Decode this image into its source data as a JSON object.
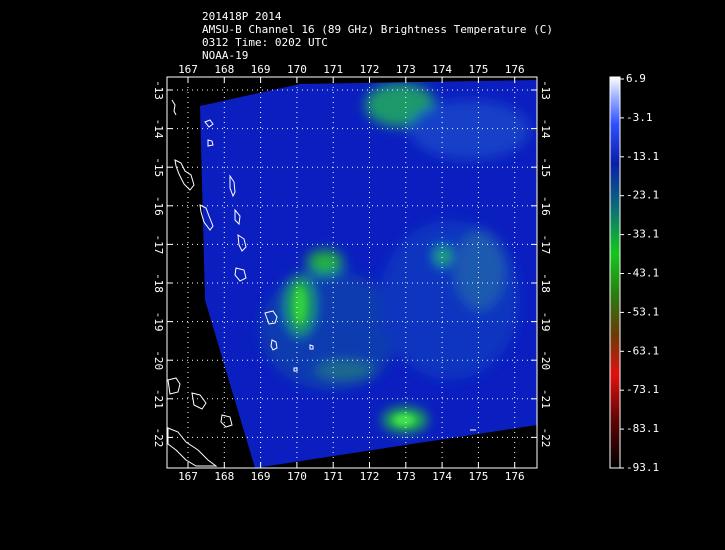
{
  "header": {
    "lines": [
      "201418P 2014",
      "AMSU-B Channel 16 (89 GHz) Brightness Temperature (C)",
      "0312 Time: 0202 UTC",
      "NOAA-19"
    ]
  },
  "map": {
    "lon_ticks": [
      167,
      168,
      169,
      170,
      171,
      172,
      173,
      174,
      175,
      176
    ],
    "lat_ticks": [
      -13,
      -14,
      -15,
      -16,
      -17,
      -18,
      -19,
      -20,
      -21,
      -22
    ]
  },
  "colorbar": {
    "labels": [
      6.9,
      -3.1,
      -13.1,
      -23.1,
      -33.1,
      -43.1,
      -53.1,
      -63.1,
      -73.1,
      -83.1,
      -93.1
    ]
  }
}
